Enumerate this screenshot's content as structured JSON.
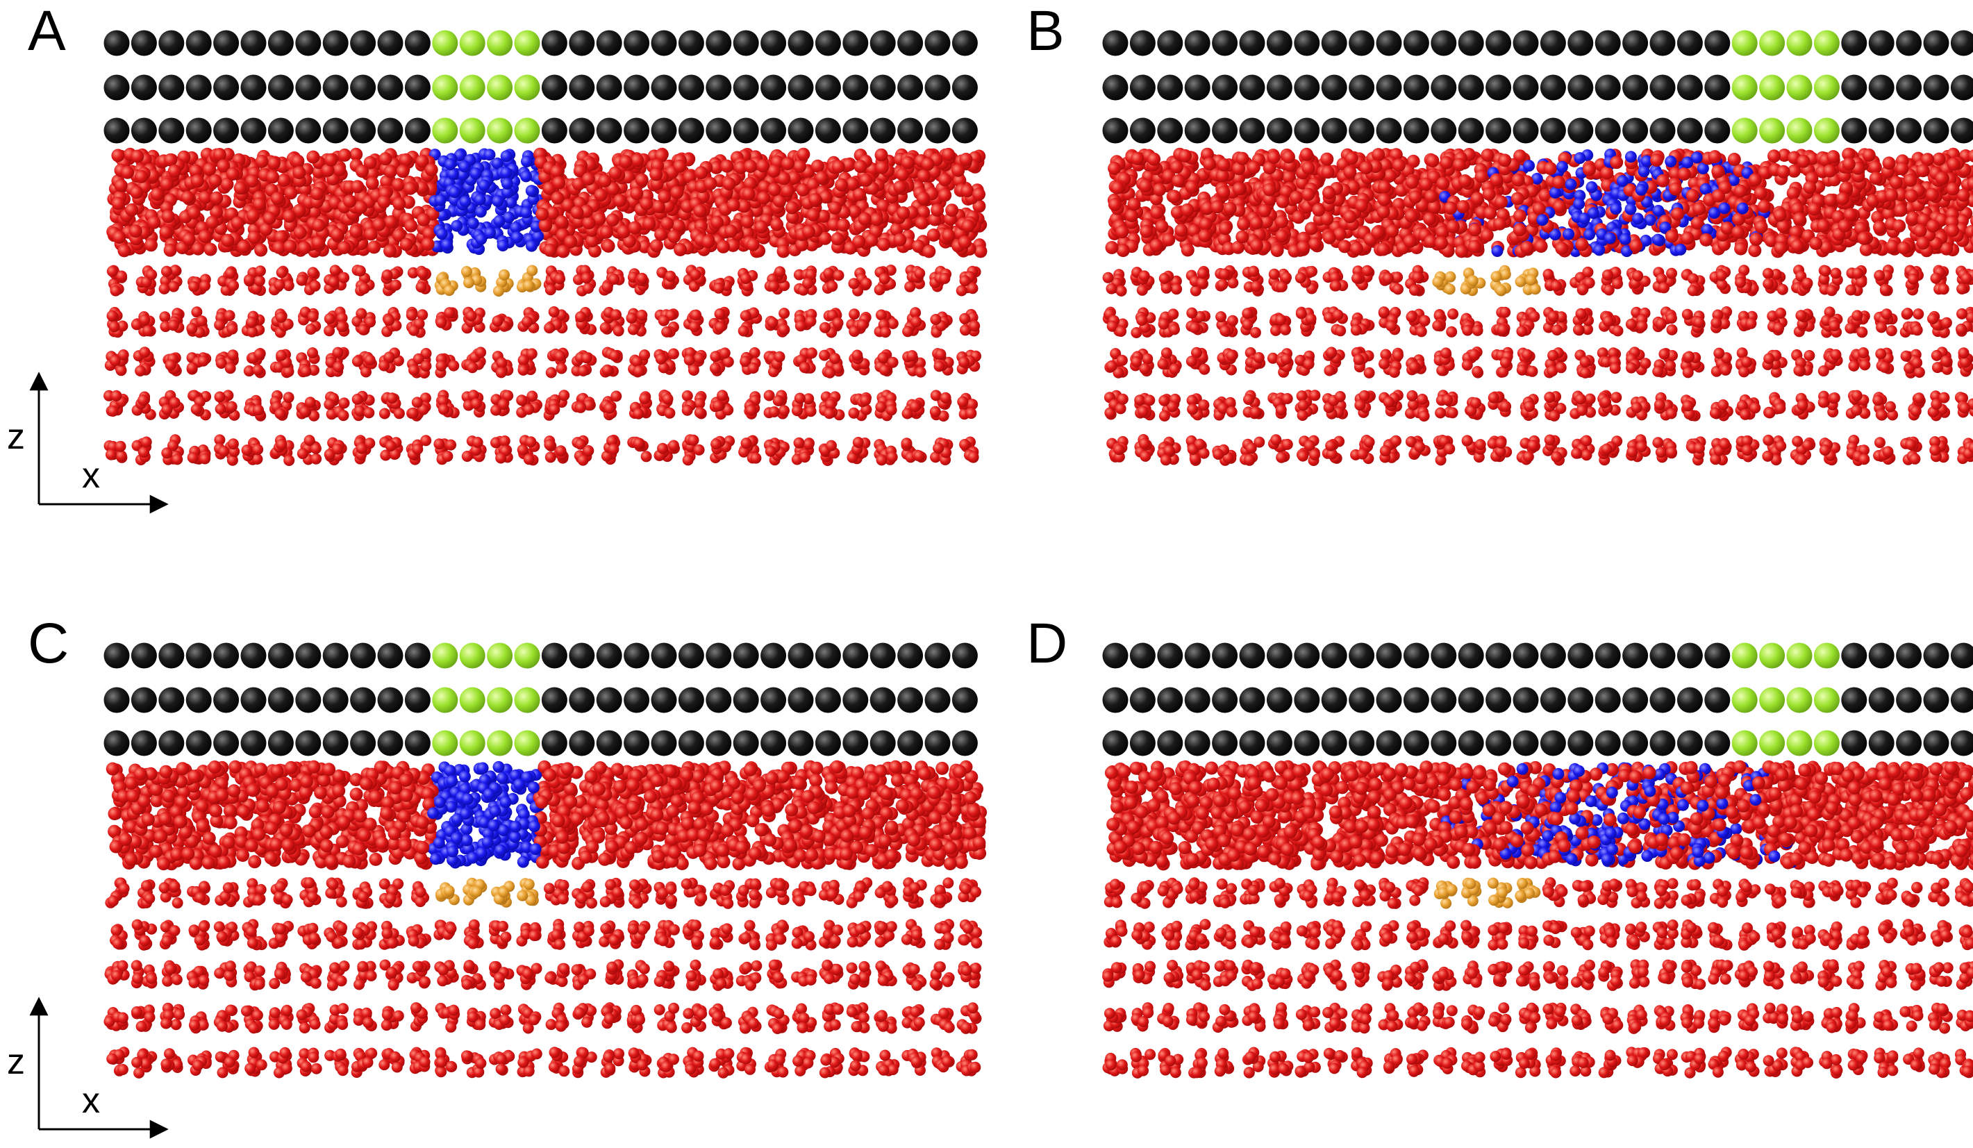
{
  "panels": [
    {
      "id": "A",
      "label": "A",
      "window_start_column": 13,
      "window_columns": 4,
      "mobile_region_shifted": false,
      "axes": {
        "vertical": "z",
        "horizontal": "x"
      }
    },
    {
      "id": "B",
      "label": "B",
      "window_start_column": 24,
      "window_columns": 4,
      "mobile_region_shifted": true,
      "axes": null
    },
    {
      "id": "C",
      "label": "C",
      "window_start_column": 13,
      "window_columns": 4,
      "mobile_region_shifted": false,
      "axes": {
        "vertical": "z",
        "horizontal": "x"
      }
    },
    {
      "id": "D",
      "label": "D",
      "window_start_column": 24,
      "window_columns": 4,
      "mobile_region_shifted": true,
      "axes": null
    }
  ],
  "wall_rows": 3,
  "wall_columns": 32,
  "lattice_rows": 5,
  "colors": {
    "wall": "#000000",
    "window": "#9be22d",
    "fluid": "#e01818",
    "tagged_fluid": "#1a1aee",
    "tagged_substrate": "#e8a030",
    "axis": "#000000"
  }
}
